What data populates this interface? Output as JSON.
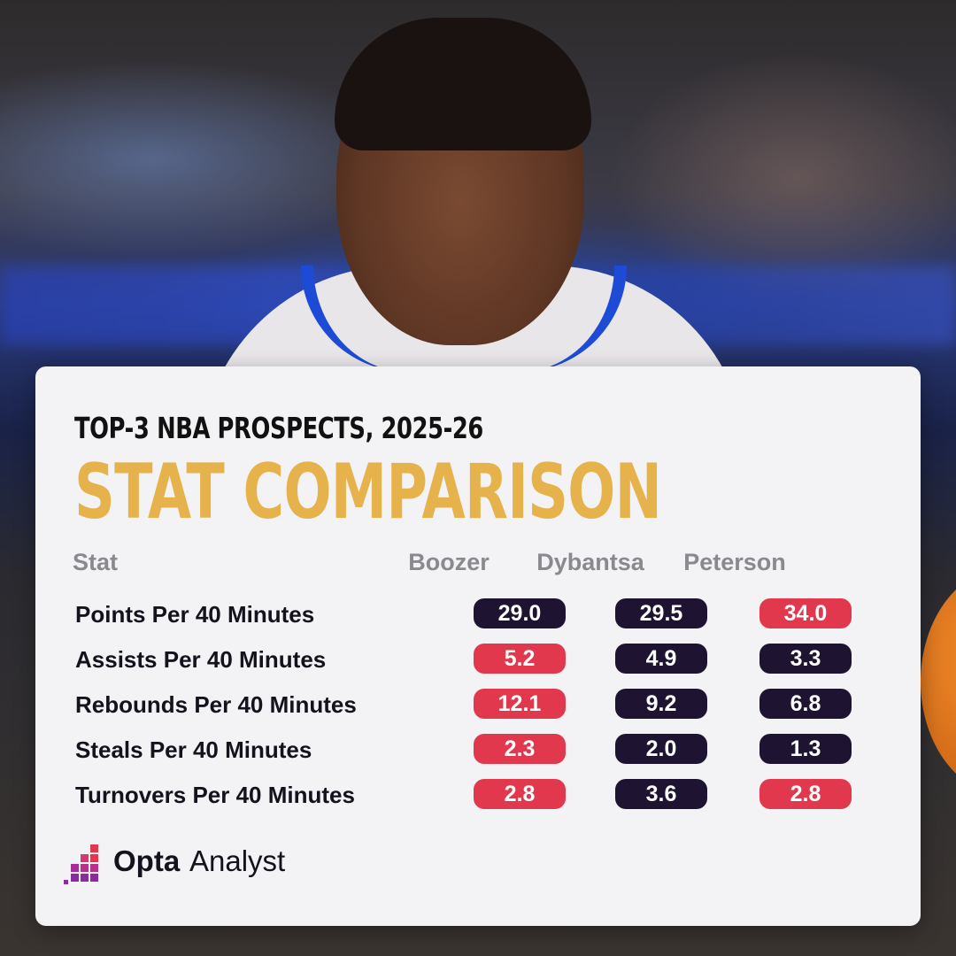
{
  "card": {
    "kicker": "TOP-3 NBA PROSPECTS, 2025-26",
    "headline": "STAT COMPARISON"
  },
  "table": {
    "headers": {
      "stat": "Stat",
      "players": [
        "Boozer",
        "Dybantsa",
        "Peterson"
      ]
    },
    "rows": [
      {
        "label": "Points Per 40 Minutes",
        "values": [
          "29.0",
          "29.5",
          "34.0"
        ],
        "highlight": [
          false,
          false,
          true
        ]
      },
      {
        "label": "Assists Per 40 Minutes",
        "values": [
          "5.2",
          "4.9",
          "3.3"
        ],
        "highlight": [
          true,
          false,
          false
        ]
      },
      {
        "label": "Rebounds Per 40 Minutes",
        "values": [
          "12.1",
          "9.2",
          "6.8"
        ],
        "highlight": [
          true,
          false,
          false
        ]
      },
      {
        "label": "Steals Per 40 Minutes",
        "values": [
          "2.3",
          "2.0",
          "1.3"
        ],
        "highlight": [
          true,
          false,
          false
        ]
      },
      {
        "label": "Turnovers Per 40 Minutes",
        "values": [
          "2.8",
          "3.6",
          "2.8"
        ],
        "highlight": [
          true,
          false,
          true
        ]
      }
    ]
  },
  "brand": {
    "name_bold": "Opta",
    "name_light": "Analyst",
    "icon": "opta-analyst-logo-icon"
  },
  "colors": {
    "headline": "#e6b24b",
    "pill_dark": "#1e1431",
    "pill_highlight": "#e2384d",
    "card_bg": "#f3f2f4"
  }
}
